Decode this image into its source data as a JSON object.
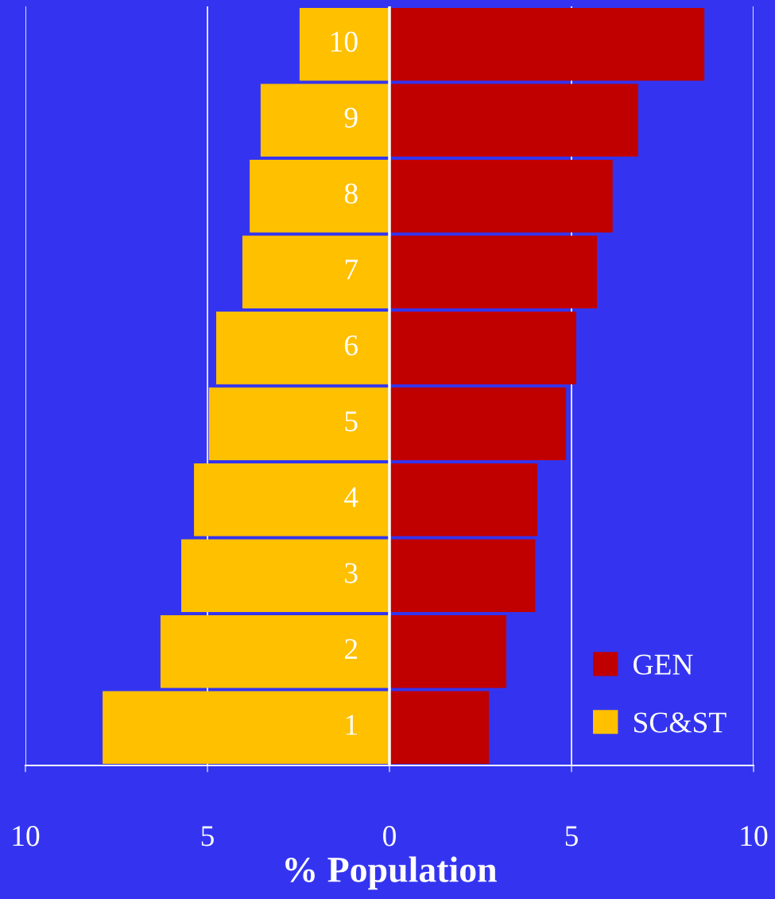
{
  "chart_data": {
    "type": "bar",
    "orientation": "horizontal",
    "stacked": true,
    "xlabel": "% Population",
    "categories": [
      "10",
      "9",
      "8",
      "7",
      "6",
      "5",
      "4",
      "3",
      "2",
      "1"
    ],
    "series": [
      {
        "name": "GEN",
        "color": "#c00000",
        "values": [
          8.65,
          6.83,
          6.13,
          5.7,
          5.13,
          4.85,
          4.06,
          4.0,
          3.21,
          2.73
        ]
      },
      {
        "name": "SC&ST",
        "color": "#ffc000",
        "values": [
          -2.47,
          -3.54,
          -3.84,
          -4.04,
          -4.76,
          -4.96,
          -5.37,
          -5.72,
          -6.29,
          -7.88
        ]
      }
    ],
    "xlim": [
      -10,
      10
    ],
    "xticks": [
      {
        "value": -10,
        "label": "10"
      },
      {
        "value": -5,
        "label": "5"
      },
      0,
      5,
      10
    ],
    "grid": "x",
    "legend": "bottom right"
  }
}
